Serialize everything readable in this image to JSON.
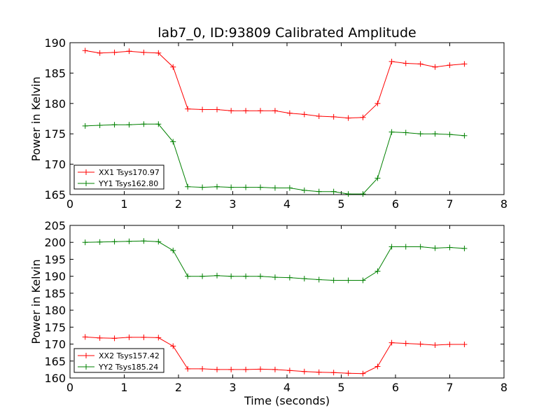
{
  "chart_data": {
    "type": "line",
    "title": "lab7_0, ID:93809 Calibrated Amplitude",
    "xlabel": "Time (seconds)",
    "colors": {
      "red": "#ff0000",
      "green": "#008000"
    },
    "subplots": [
      {
        "ylabel": "Power in Kelvin",
        "xlim": [
          0,
          8
        ],
        "ylim": [
          165,
          190
        ],
        "xticks": [
          "0",
          "1",
          "2",
          "3",
          "4",
          "5",
          "6",
          "7",
          "8"
        ],
        "yticks": [
          "165",
          "170",
          "175",
          "180",
          "185",
          "190"
        ],
        "legend_position": "lower-left",
        "x": [
          0.28,
          0.55,
          0.82,
          1.09,
          1.36,
          1.63,
          1.9,
          2.17,
          2.44,
          2.71,
          2.97,
          3.24,
          3.51,
          3.78,
          4.05,
          4.32,
          4.59,
          4.86,
          5.13,
          5.4,
          5.67,
          5.93,
          6.19,
          6.46,
          6.73,
          7.0,
          7.27
        ],
        "series": [
          {
            "name": "XX1 Tsys170.97",
            "color": "#ff0000",
            "values": [
              188.7,
              188.3,
              188.4,
              188.6,
              188.4,
              188.3,
              186.0,
              179.1,
              179.0,
              179.0,
              178.8,
              178.8,
              178.8,
              178.8,
              178.4,
              178.2,
              177.9,
              177.8,
              177.6,
              177.7,
              180.0,
              186.9,
              186.6,
              186.5,
              186.0,
              186.3,
              186.5
            ]
          },
          {
            "name": "YY1 Tsys162.80",
            "color": "#008000",
            "values": [
              176.3,
              176.4,
              176.5,
              176.5,
              176.6,
              176.6,
              173.7,
              166.3,
              166.2,
              166.3,
              166.2,
              166.2,
              166.2,
              166.1,
              166.1,
              165.7,
              165.5,
              165.5,
              165.1,
              165.1,
              167.7,
              175.3,
              175.2,
              175.0,
              175.0,
              174.9,
              174.7
            ]
          }
        ]
      },
      {
        "ylabel": "Power in Kelvin",
        "xlim": [
          0,
          8
        ],
        "ylim": [
          160,
          205
        ],
        "xticks": [
          "0",
          "1",
          "2",
          "3",
          "4",
          "5",
          "6",
          "7",
          "8"
        ],
        "yticks": [
          "160",
          "165",
          "170",
          "175",
          "180",
          "185",
          "190",
          "195",
          "200",
          "205"
        ],
        "legend_position": "lower-left",
        "x": [
          0.28,
          0.55,
          0.82,
          1.09,
          1.36,
          1.63,
          1.9,
          2.17,
          2.44,
          2.71,
          2.97,
          3.24,
          3.51,
          3.78,
          4.05,
          4.32,
          4.59,
          4.86,
          5.13,
          5.4,
          5.67,
          5.93,
          6.19,
          6.46,
          6.73,
          7.0,
          7.27
        ],
        "series": [
          {
            "name": "XX2 Tsys157.42",
            "color": "#ff0000",
            "values": [
              172.1,
              171.8,
              171.7,
              172.0,
              172.0,
              171.9,
              169.4,
              162.7,
              162.7,
              162.5,
              162.5,
              162.5,
              162.6,
              162.5,
              162.2,
              161.9,
              161.7,
              161.6,
              161.4,
              161.3,
              163.4,
              170.4,
              170.2,
              170.0,
              169.7,
              169.9,
              169.9
            ]
          },
          {
            "name": "YY2 Tsys185.24",
            "color": "#008000",
            "values": [
              200.0,
              200.1,
              200.2,
              200.3,
              200.4,
              200.2,
              197.6,
              190.0,
              190.0,
              190.2,
              190.0,
              190.0,
              190.0,
              189.7,
              189.6,
              189.3,
              189.0,
              188.8,
              188.8,
              188.8,
              191.5,
              198.7,
              198.7,
              198.7,
              198.3,
              198.5,
              198.2
            ]
          }
        ]
      }
    ]
  }
}
